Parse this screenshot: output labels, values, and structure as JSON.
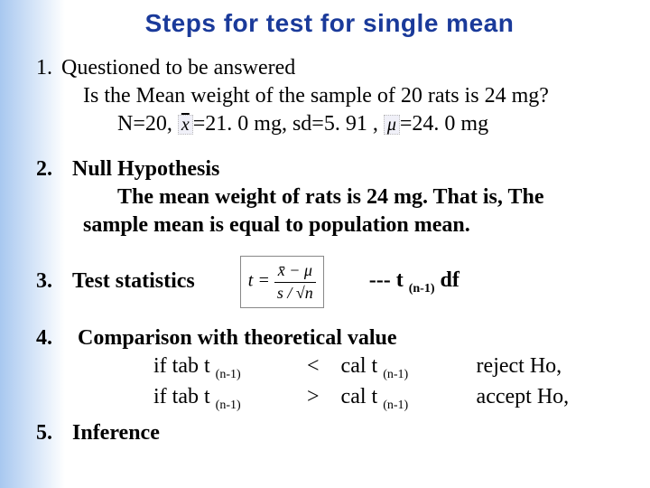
{
  "title": "Steps for  test for single mean",
  "colors": {
    "title": "#1a3a9a",
    "body_text": "#000000",
    "background_gradient_start": "#a8c8f0",
    "background_gradient_end": "#ffffff"
  },
  "typography": {
    "title_font": "Arial",
    "title_fontsize_pt": 21,
    "title_weight": 900,
    "body_font": "Times New Roman",
    "body_fontsize_pt": 18
  },
  "item1": {
    "num": "1.",
    "heading": "Questioned to be answered",
    "line1": "Is the Mean weight of the sample of 20 rats is 24 mg?",
    "n_label": "N=20, ",
    "xbar_val": "=21. 0 mg, sd=5. 91 ,  ",
    "mu_val": "=24. 0 mg"
  },
  "item2": {
    "num": "2.",
    "heading": "Null Hypothesis",
    "line1": "The mean weight of rats is 24 mg.  That is, The",
    "line2": "sample mean is equal to population mean."
  },
  "item3": {
    "num": "3.",
    "heading": "Test statistics",
    "formula_lhs": "t =",
    "formula_top": "x̄ − μ",
    "formula_bot": "s / √n",
    "tail": "--- t ",
    "tail_sub": "(n-1)",
    "tail_end": " df"
  },
  "item4": {
    "num": "4.",
    "heading": "Comparison with theoretical value",
    "row1_a": "if tab  t ",
    "row1_sub": "(n-1)",
    "row1_op": "  <    cal t ",
    "row1_res": "reject Ho,",
    "row2_a": "if tab  t ",
    "row2_sub": "(n-1)",
    "row2_op": "  >    cal t ",
    "row2_res": "accept Ho,"
  },
  "item5": {
    "num": "5.",
    "heading": "Inference"
  }
}
